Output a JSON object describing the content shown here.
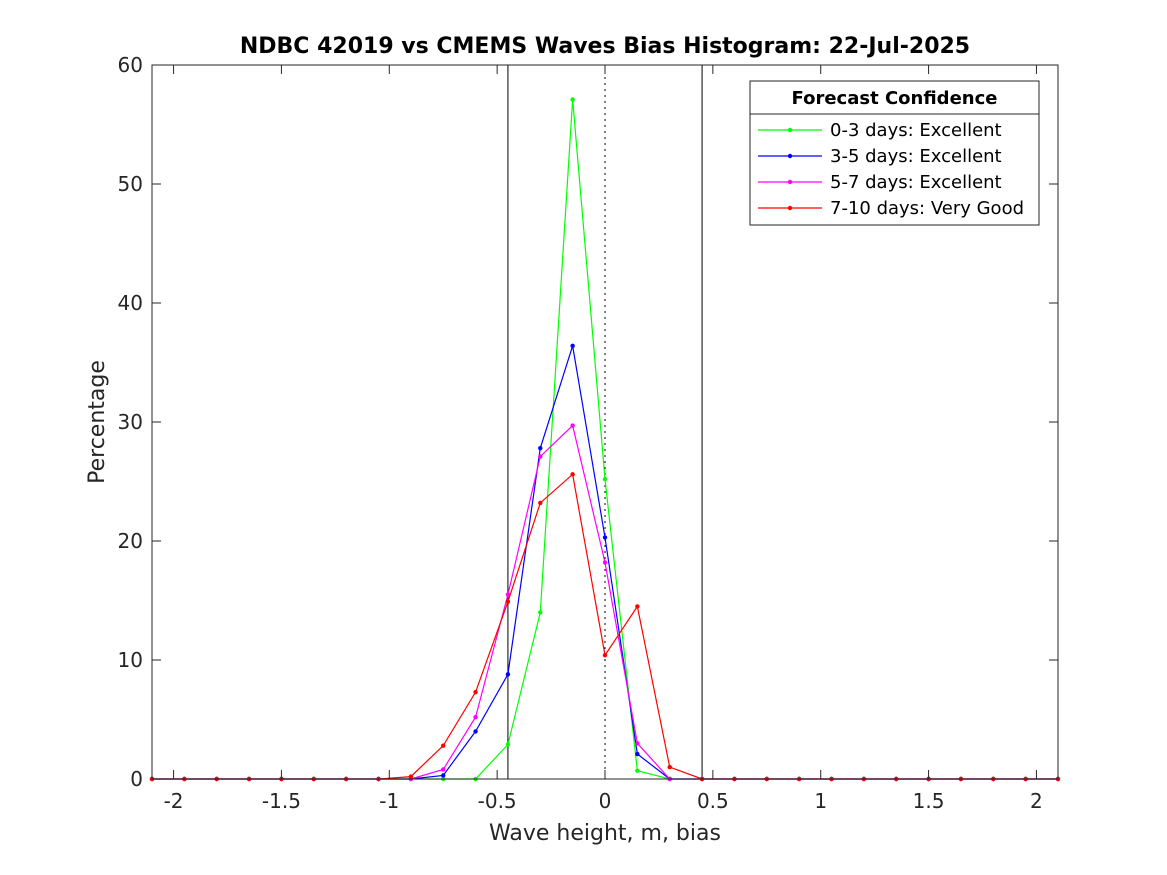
{
  "chart_data": {
    "type": "line",
    "title": "NDBC 42019 vs CMEMS Waves Bias Histogram: 22-Jul-2025",
    "xlabel": "Wave height, m, bias",
    "ylabel": "Percentage",
    "xlim": [
      -2.1,
      2.1
    ],
    "ylim": [
      0,
      60
    ],
    "xticks": [
      -2,
      -1.5,
      -1,
      -0.5,
      0,
      0.5,
      1,
      1.5,
      2
    ],
    "xtick_labels": [
      "-2",
      "-1.5",
      "-1",
      "-0.5",
      "0",
      "0.5",
      "1",
      "1.5",
      "2"
    ],
    "yticks": [
      0,
      10,
      20,
      30,
      40,
      50,
      60
    ],
    "ytick_labels": [
      "0",
      "10",
      "20",
      "30",
      "40",
      "50",
      "60"
    ],
    "grid": false,
    "reference_lines": {
      "solid_x": [
        -0.45,
        0.45
      ],
      "dotted_x": [
        0
      ]
    },
    "legend": {
      "title": "Forecast Confidence",
      "placement": "top-right"
    },
    "x": [
      -2.1,
      -1.95,
      -1.8,
      -1.65,
      -1.5,
      -1.35,
      -1.2,
      -1.05,
      -0.9,
      -0.75,
      -0.6,
      -0.45,
      -0.3,
      -0.15,
      0,
      0.15,
      0.3,
      0.45,
      0.6,
      0.75,
      0.9,
      1.05,
      1.2,
      1.35,
      1.5,
      1.65,
      1.8,
      1.95,
      2.1
    ],
    "series": [
      {
        "name": "0-3 days: Excellent",
        "color": "#00ff00",
        "values": [
          0,
          0,
          0,
          0,
          0,
          0,
          0,
          0,
          0,
          0,
          0,
          2.9,
          14.0,
          57.1,
          25.2,
          0.7,
          0,
          0,
          0,
          0,
          0,
          0,
          0,
          0,
          0,
          0,
          0,
          0,
          0
        ]
      },
      {
        "name": "3-5 days: Excellent",
        "color": "#0000ff",
        "values": [
          0,
          0,
          0,
          0,
          0,
          0,
          0,
          0,
          0,
          0.3,
          4.0,
          8.8,
          27.8,
          36.4,
          20.3,
          2.1,
          0,
          0,
          0,
          0,
          0,
          0,
          0,
          0,
          0,
          0,
          0,
          0,
          0
        ]
      },
      {
        "name": "5-7 days: Excellent",
        "color": "#ff00ff",
        "values": [
          0,
          0,
          0,
          0,
          0,
          0,
          0,
          0,
          0,
          0.8,
          5.2,
          15.5,
          27.1,
          29.7,
          18.2,
          3.0,
          0,
          0,
          0,
          0,
          0,
          0,
          0,
          0,
          0,
          0,
          0,
          0,
          0
        ]
      },
      {
        "name": "7-10 days: Very Good",
        "color": "#ff0000",
        "values": [
          0,
          0,
          0,
          0,
          0,
          0,
          0,
          0,
          0.2,
          2.8,
          7.3,
          14.9,
          23.2,
          25.6,
          10.4,
          14.5,
          1.0,
          0,
          0,
          0,
          0,
          0,
          0,
          0,
          0,
          0,
          0,
          0,
          0
        ]
      }
    ]
  }
}
